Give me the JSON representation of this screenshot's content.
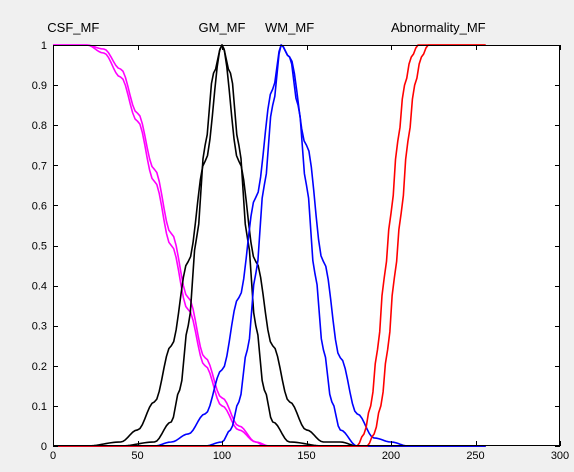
{
  "chart_data": {
    "type": "line",
    "title": "",
    "xlabel": "",
    "ylabel": "",
    "xlim": [
      0,
      300
    ],
    "ylim": [
      0,
      1
    ],
    "grid": false,
    "legend": "none",
    "x_ticks": [
      0,
      50,
      100,
      150,
      200,
      250,
      300
    ],
    "x_tick_labels": [
      "0",
      "50",
      "100",
      "150",
      "200",
      "250",
      "300"
    ],
    "y_ticks": [
      0,
      0.1,
      0.2,
      0.3,
      0.4,
      0.5,
      0.6,
      0.7,
      0.8,
      0.9,
      1
    ],
    "y_tick_labels": [
      "0",
      "0.1",
      "0.2",
      "0.3",
      "0.4",
      "0.5",
      "0.6",
      "0.7",
      "0.8",
      "0.9",
      "1"
    ],
    "annotations": [
      {
        "text": "CSF_MF",
        "x": 12
      },
      {
        "text": "GM_MF",
        "x": 100
      },
      {
        "text": "WM_MF",
        "x": 140
      },
      {
        "text": "Abnormality_MF",
        "x": 228
      }
    ],
    "x_end": 256,
    "series": [
      {
        "color": "#ff00ff",
        "type": "z",
        "x": [
          0,
          10,
          20,
          30,
          40,
          50,
          60,
          70,
          80,
          90,
          100,
          110,
          120,
          125,
          130,
          256
        ],
        "values": [
          1,
          1,
          1,
          0.99,
          0.94,
          0.83,
          0.69,
          0.53,
          0.37,
          0.22,
          0.12,
          0.05,
          0.01,
          0,
          0,
          0
        ]
      },
      {
        "color": "#ff00ff",
        "type": "z",
        "x": [
          0,
          10,
          20,
          30,
          40,
          50,
          60,
          70,
          80,
          90,
          100,
          110,
          120,
          128,
          133,
          256
        ],
        "values": [
          1,
          1,
          1,
          0.98,
          0.92,
          0.81,
          0.66,
          0.5,
          0.34,
          0.2,
          0.1,
          0.04,
          0.01,
          0,
          0,
          0
        ]
      },
      {
        "color": "#000000",
        "type": "gauss",
        "x": [
          0,
          20,
          40,
          50,
          60,
          70,
          80,
          90,
          100,
          110,
          120,
          130,
          140,
          150,
          160,
          170,
          180,
          200,
          256
        ],
        "values": [
          0,
          0,
          0.01,
          0.04,
          0.11,
          0.25,
          0.46,
          0.71,
          1,
          0.71,
          0.46,
          0.25,
          0.11,
          0.04,
          0.01,
          0.01,
          0,
          0,
          0
        ]
      },
      {
        "color": "#000000",
        "type": "gauss",
        "x": [
          0,
          40,
          60,
          70,
          75,
          80,
          85,
          90,
          95,
          100,
          105,
          110,
          115,
          120,
          125,
          130,
          140,
          160,
          256
        ],
        "values": [
          0,
          0,
          0.01,
          0.06,
          0.14,
          0.3,
          0.52,
          0.75,
          0.93,
          1,
          0.93,
          0.75,
          0.52,
          0.3,
          0.14,
          0.06,
          0.01,
          0,
          0
        ]
      },
      {
        "color": "#0000ff",
        "type": "gauss",
        "x": [
          0,
          60,
          70,
          80,
          90,
          100,
          110,
          120,
          130,
          135,
          140,
          150,
          160,
          170,
          180,
          190,
          200,
          210,
          256
        ],
        "values": [
          0,
          0,
          0.01,
          0.03,
          0.08,
          0.19,
          0.37,
          0.62,
          0.89,
          1,
          0.97,
          0.75,
          0.46,
          0.22,
          0.08,
          0.02,
          0.01,
          0,
          0
        ]
      },
      {
        "color": "#0000ff",
        "type": "gauss",
        "x": [
          0,
          90,
          100,
          105,
          110,
          115,
          120,
          125,
          130,
          135,
          140,
          145,
          150,
          155,
          160,
          165,
          170,
          180,
          256
        ],
        "values": [
          0,
          0,
          0.01,
          0.04,
          0.11,
          0.24,
          0.43,
          0.65,
          0.85,
          1,
          0.97,
          0.85,
          0.65,
          0.43,
          0.24,
          0.11,
          0.04,
          0,
          0
        ]
      },
      {
        "color": "#ff0000",
        "type": "s",
        "x": [
          0,
          180,
          184,
          188,
          192,
          196,
          200,
          204,
          208,
          212,
          216,
          220,
          256
        ],
        "values": [
          0,
          0,
          0.03,
          0.1,
          0.24,
          0.42,
          0.58,
          0.76,
          0.9,
          0.97,
          1,
          1,
          1
        ]
      },
      {
        "color": "#ff0000",
        "type": "s",
        "x": [
          0,
          186,
          190,
          194,
          198,
          202,
          206,
          210,
          214,
          218,
          222,
          226,
          256
        ],
        "values": [
          0,
          0,
          0.03,
          0.1,
          0.24,
          0.42,
          0.58,
          0.76,
          0.9,
          0.97,
          1,
          1,
          1
        ]
      }
    ]
  }
}
